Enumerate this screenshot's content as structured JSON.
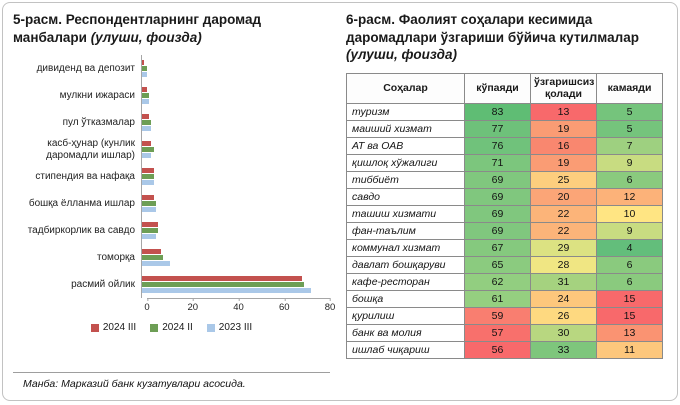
{
  "page": {
    "background": "#ffffff",
    "border_color": "#c2c2c2"
  },
  "left_panel": {
    "title": "5-расм. Респондентларнинг даромад манбалари",
    "title_note": "(улуши, фоизда)",
    "source_note": "Манба: Марказий банк кузатувлари асосида."
  },
  "right_panel": {
    "title": "6-расм. Фаолият соҳалари кесимида даромадлари ўзгариши бўйича кутилмалар",
    "title_note": "(улуши, фоизда)"
  },
  "chart_data": [
    {
      "type": "bar",
      "orientation": "horizontal",
      "title": "5-расм. Респондентларнинг даромад манбалари (улуши, фоизда)",
      "categories": [
        "дивиденд ва депозит",
        "мулкни ижараси",
        "пул ўтказмалар",
        "касб-ҳунар (кунлик даромадли ишлар)",
        "стипендия ва нафақа",
        "бошқа ёлланма ишлар",
        "тадбиркорлик ва савдо",
        "томорқа",
        "расмий ойлик"
      ],
      "series": [
        {
          "name": "2024 III",
          "color": "#c3514e",
          "values": [
            1,
            2,
            3,
            4,
            5,
            5,
            7,
            8,
            68
          ]
        },
        {
          "name": "2024 II",
          "color": "#6d9e55",
          "values": [
            2,
            3,
            4,
            5,
            5,
            6,
            7,
            9,
            69
          ]
        },
        {
          "name": "2023 III",
          "color": "#aac8e8",
          "values": [
            2,
            3,
            4,
            4,
            5,
            6,
            6,
            12,
            72
          ]
        }
      ],
      "xlim": [
        0,
        80
      ],
      "x_ticks": [
        0,
        20,
        40,
        60,
        80
      ],
      "legend_position": "bottom",
      "grid": false
    },
    {
      "type": "table",
      "title": "6-расм. Фаолият соҳалари кесимида даромадлари ўзгариши бўйича кутилмалар (улуши, фоизда)",
      "columns": [
        "Соҳалар",
        "кўпаяди",
        "ўзгаришсиз қолади",
        "камаяди"
      ],
      "color_scale": {
        "high": "#63be7b",
        "mid": "#ffeb84",
        "low": "#f8696b"
      },
      "rows": [
        {
          "label": "туризм",
          "values": [
            83,
            13,
            5
          ],
          "colors": [
            "#5fbd74",
            "#f8696b",
            "#75c47c"
          ]
        },
        {
          "label": "маиший хизмат",
          "values": [
            77,
            19,
            5
          ],
          "colors": [
            "#6ec17a",
            "#fa9c74",
            "#75c47c"
          ]
        },
        {
          "label": "АТ ва ОАВ",
          "values": [
            76,
            16,
            7
          ],
          "colors": [
            "#70c27b",
            "#f9876f",
            "#9ed080"
          ]
        },
        {
          "label": "қишлоқ хўжалиги",
          "values": [
            71,
            19,
            9
          ],
          "colors": [
            "#7cc67d",
            "#fa9c74",
            "#c8dc81"
          ]
        },
        {
          "label": "тиббиёт",
          "values": [
            69,
            25,
            6
          ],
          "colors": [
            "#80c77e",
            "#fdce7e",
            "#8aca7e"
          ]
        },
        {
          "label": "савдо",
          "values": [
            69,
            20,
            12
          ],
          "colors": [
            "#80c77e",
            "#fba577",
            "#fcb279"
          ]
        },
        {
          "label": "ташиш хизмати",
          "values": [
            69,
            22,
            10
          ],
          "colors": [
            "#80c77e",
            "#fcb479",
            "#ffe583"
          ]
        },
        {
          "label": "фан-таълим",
          "values": [
            69,
            22,
            9
          ],
          "colors": [
            "#80c77e",
            "#fcb479",
            "#c8dc81"
          ]
        },
        {
          "label": "коммунал хизмат",
          "values": [
            67,
            29,
            4
          ],
          "colors": [
            "#85c97e",
            "#dce282",
            "#63be7b"
          ]
        },
        {
          "label": "давлат бошқаруви",
          "values": [
            65,
            28,
            6
          ],
          "colors": [
            "#8bcb7f",
            "#f0e683",
            "#8aca7e"
          ]
        },
        {
          "label": "кафе-ресторан",
          "values": [
            62,
            31,
            6
          ],
          "colors": [
            "#92ce80",
            "#a5d27f",
            "#8aca7e"
          ]
        },
        {
          "label": "бошқа",
          "values": [
            61,
            24,
            15
          ],
          "colors": [
            "#95cf80",
            "#fdc77c",
            "#f8696b"
          ]
        },
        {
          "label": "қурилиш",
          "values": [
            59,
            26,
            15
          ],
          "colors": [
            "#f97e70",
            "#fed980",
            "#f8696b"
          ]
        },
        {
          "label": "банк ва молия",
          "values": [
            57,
            30,
            13
          ],
          "colors": [
            "#f8706c",
            "#b8d780",
            "#fa9372"
          ]
        },
        {
          "label": "ишлаб чиқариш",
          "values": [
            56,
            33,
            11
          ],
          "colors": [
            "#f8696b",
            "#7ec67c",
            "#fdc77c"
          ]
        }
      ]
    }
  ]
}
